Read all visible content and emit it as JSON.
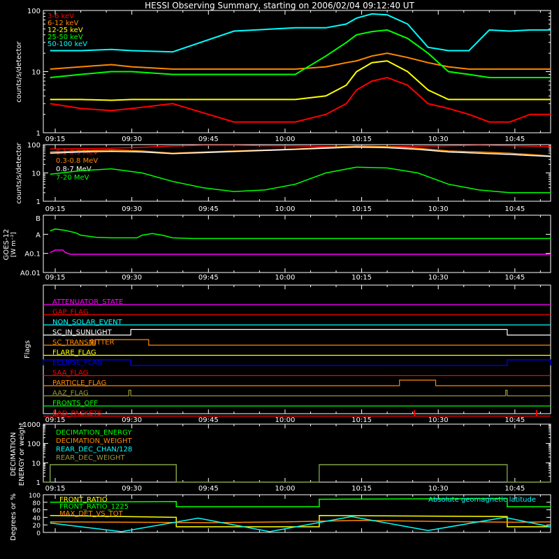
{
  "title": "HESSI Observing Summary, starting on 2006/02/04 09:12:40 UT",
  "colors": {
    "background": "#000000",
    "axis": "#ffffff",
    "red": "#ff0000",
    "orange": "#ff8800",
    "yellow": "#ffff00",
    "green": "#00ff00",
    "cyan": "#00ffff",
    "magenta": "#ff00ff",
    "blue": "#0000ff",
    "olive": "#999933"
  },
  "time_axis": {
    "ticks": [
      "09:15",
      "09:30",
      "09:45",
      "10:00",
      "10:15",
      "10:30",
      "10:45"
    ],
    "range_minutes": [
      12.67,
      112
    ]
  },
  "chart_data": [
    {
      "type": "line",
      "panel": "low-energy-rates",
      "ylabel": "counts/s/detector",
      "ylog": true,
      "ylim": [
        1,
        100
      ],
      "ytick_labels": [
        "1",
        "10",
        "100"
      ],
      "legend_position": "top-left",
      "series": [
        {
          "name": "3-6 keV",
          "color": "#ff0000",
          "x": [
            14,
            20,
            26,
            30,
            38,
            50,
            62,
            68,
            72,
            74,
            77,
            80,
            84,
            88,
            92,
            96,
            100,
            104,
            108,
            112
          ],
          "y": [
            3,
            2.5,
            2.3,
            2.5,
            3,
            1.5,
            1.5,
            2,
            3,
            5,
            7,
            8,
            6,
            3,
            2.5,
            2,
            1.5,
            1.5,
            2,
            2
          ]
        },
        {
          "name": "6-12 keV",
          "color": "#ff8800",
          "x": [
            14,
            20,
            26,
            30,
            38,
            50,
            62,
            68,
            72,
            74,
            77,
            80,
            84,
            88,
            92,
            96,
            100,
            104,
            108,
            112
          ],
          "y": [
            11,
            12,
            13,
            12,
            11,
            11,
            11,
            12,
            14,
            15,
            18,
            20,
            17,
            14,
            12,
            11,
            11,
            11,
            11,
            11
          ]
        },
        {
          "name": "12-25 keV",
          "color": "#ffff00",
          "x": [
            14,
            20,
            26,
            30,
            38,
            50,
            62,
            68,
            72,
            74,
            77,
            80,
            84,
            88,
            92,
            96,
            100,
            104,
            108,
            112
          ],
          "y": [
            3.5,
            3.5,
            3.4,
            3.5,
            3.5,
            3.5,
            3.5,
            4,
            6,
            10,
            14,
            15,
            10,
            5,
            3.5,
            3.5,
            3.5,
            3.5,
            3.5,
            3.5
          ]
        },
        {
          "name": "25-50 keV",
          "color": "#00ff00",
          "x": [
            14,
            20,
            26,
            30,
            38,
            50,
            62,
            68,
            72,
            74,
            77,
            80,
            84,
            88,
            92,
            96,
            100,
            104,
            108,
            112
          ],
          "y": [
            8,
            9,
            10,
            10,
            9,
            9,
            9,
            18,
            30,
            40,
            45,
            48,
            35,
            20,
            10,
            9,
            8,
            8,
            8,
            8
          ]
        },
        {
          "name": "50-100 keV",
          "color": "#00ffff",
          "x": [
            14,
            20,
            26,
            30,
            38,
            50,
            62,
            68,
            72,
            74,
            77,
            80,
            84,
            88,
            92,
            96,
            100,
            104,
            108,
            112
          ],
          "y": [
            22,
            22,
            23,
            22,
            21,
            46,
            52,
            52,
            60,
            75,
            88,
            85,
            60,
            25,
            22,
            22,
            48,
            46,
            48,
            48
          ]
        }
      ]
    },
    {
      "type": "line",
      "panel": "high-energy-rates",
      "ylabel": "counts/s/detector",
      "ylog": true,
      "ylim": [
        1,
        100
      ],
      "ytick_labels": [
        "1",
        "10",
        "100"
      ],
      "legend_position": "top-left",
      "series": [
        {
          "name": "0.1-0.3 MeV",
          "color": "#ff0000",
          "x": [
            14,
            20,
            26,
            32,
            38,
            44,
            50,
            56,
            62,
            68,
            74,
            80,
            86,
            92,
            98,
            104,
            112
          ],
          "y": [
            70,
            72,
            75,
            80,
            90,
            95,
            95,
            92,
            90,
            85,
            82,
            84,
            88,
            92,
            95,
            92,
            85
          ]
        },
        {
          "name": "0.3-0.8 MeV",
          "color": "#ff8800",
          "x": [
            14,
            20,
            26,
            32,
            38,
            44,
            50,
            56,
            62,
            68,
            74,
            80,
            86,
            92,
            98,
            104,
            112
          ],
          "y": [
            55,
            60,
            65,
            60,
            50,
            55,
            60,
            65,
            70,
            80,
            90,
            85,
            75,
            60,
            55,
            50,
            40
          ]
        },
        {
          "name": "0.8-7 MeV",
          "color": "#ffffff",
          "x": [
            14,
            20,
            26,
            32,
            38,
            44,
            50,
            56,
            62,
            68,
            74,
            80,
            86,
            92,
            98,
            104,
            112
          ],
          "y": [
            50,
            55,
            58,
            55,
            48,
            52,
            57,
            62,
            68,
            75,
            82,
            78,
            68,
            55,
            50,
            45,
            38
          ]
        },
        {
          "name": "7-20 MeV",
          "color": "#00ff00",
          "x": [
            14,
            20,
            26,
            32,
            38,
            44,
            50,
            56,
            62,
            68,
            74,
            80,
            86,
            92,
            98,
            104,
            112
          ],
          "y": [
            9,
            12,
            14,
            10,
            5,
            3,
            2.2,
            2.5,
            4,
            10,
            16,
            15,
            10,
            4,
            2.5,
            2,
            2
          ]
        }
      ]
    },
    {
      "type": "line",
      "panel": "goes",
      "ylabel": "GOES-12",
      "ylabel_unit": "[W m⁻²]",
      "ylog": true,
      "ytick_labels": [
        "B",
        "A",
        "A0.1",
        "A0.01"
      ],
      "series": [
        {
          "color": "#00ff00",
          "x": [
            14,
            15,
            17,
            19,
            20,
            23,
            26,
            31,
            32,
            34,
            36,
            38,
            42,
            60,
            80,
            100,
            112
          ],
          "y": [
            1.5e-08,
            1.9e-08,
            1.6e-08,
            1.2e-08,
            9e-09,
            7e-09,
            6.5e-09,
            6.5e-09,
            9e-09,
            1.1e-08,
            9e-09,
            6.5e-09,
            6e-09,
            6e-09,
            6e-09,
            6e-09,
            6e-09
          ]
        },
        {
          "color": "#ff00ff",
          "x": [
            14,
            15,
            16.5,
            17,
            18,
            40,
            60,
            80,
            100,
            112
          ],
          "y": [
            1.1e-09,
            1.5e-09,
            1.5e-09,
            1.1e-09,
            9e-10,
            9e-10,
            9e-10,
            9e-10,
            9e-10,
            9e-10
          ]
        }
      ]
    },
    {
      "type": "line",
      "panel": "flags",
      "ylabel": "Flags",
      "flags": [
        {
          "name": "ATTENUATOR_STATE",
          "color": "#ff00ff",
          "on": []
        },
        {
          "name": "GAP_FLAG",
          "color": "#ff0000",
          "on": []
        },
        {
          "name": "NON_SOLAR_EVENT",
          "color": "#00ffff",
          "on": []
        },
        {
          "name": "SC_IN_SUNLIGHT",
          "color": "#ffffff",
          "on": [
            [
              29.8,
              103.5
            ]
          ]
        },
        {
          "name": "SC_TRANSMITTER",
          "color": "#ff8800",
          "on": [
            [
              22,
              22.3
            ],
            [
              22.8,
              33.3
            ]
          ]
        },
        {
          "name": "FLARE_FLAG",
          "color": "#ffff00",
          "on": []
        },
        {
          "name": "ECLIPSE_FLAG",
          "color": "#0000ff",
          "on": [
            [
              12.67,
              29.8
            ],
            [
              103.5,
              112
            ]
          ]
        },
        {
          "name": "SAA_FLAG",
          "color": "#ff0000",
          "on": []
        },
        {
          "name": "PARTICLE_FLAG",
          "color": "#ff8800",
          "on": [
            [
              82.4,
              89.5
            ]
          ]
        },
        {
          "name": "AAZ_FLAG",
          "color": "#999933",
          "on": [
            [
              29.4,
              29.8
            ],
            [
              103.2,
              103.5
            ]
          ]
        },
        {
          "name": "FRONTS_OFF",
          "color": "#00ff00",
          "on": []
        },
        {
          "name": "BAD_PACKETS",
          "color": "#ff0000",
          "on": [
            [
              85.3,
              85.4
            ],
            [
              109.2,
              109.3
            ]
          ]
        }
      ]
    },
    {
      "type": "line",
      "panel": "decimation",
      "ylabel": "DECIMATION ENERGY or weight",
      "ylog": true,
      "ylim": [
        1,
        1000
      ],
      "ytick_labels": [
        "1",
        "10",
        "100",
        "1000"
      ],
      "series": [
        {
          "name": "DECIMATION_ENERGY",
          "color": "#00ff00",
          "x": [
            12.67,
            112
          ],
          "y": [
            0,
            0
          ]
        },
        {
          "name": "DECIMATION_WEIGHT",
          "color": "#ff8800",
          "x": [
            12.67,
            112
          ],
          "y": [
            0,
            0
          ]
        },
        {
          "name": "REAR_DEC_CHAN/128",
          "color": "#00ffff",
          "x": [
            12.67,
            14,
            14,
            38.7,
            38.7,
            66.7,
            66.7,
            103.5,
            103.5,
            112
          ],
          "y": [
            1,
            1,
            8,
            8,
            1,
            1,
            8,
            8,
            1,
            1
          ]
        },
        {
          "name": "REAR_DEC_WEIGHT",
          "color": "#999933",
          "x": [
            12.67,
            14,
            14,
            38.7,
            38.7,
            66.7,
            66.7,
            103.5,
            103.5,
            112
          ],
          "y": [
            1,
            1,
            8,
            8,
            1,
            1,
            8,
            8,
            1,
            1
          ]
        }
      ]
    },
    {
      "type": "line",
      "panel": "ratios",
      "ylabel": "Degrees or %",
      "ylim": [
        0,
        100
      ],
      "ytick_labels": [
        "0",
        "20",
        "40",
        "60",
        "80",
        "100"
      ],
      "series": [
        {
          "name": "FRONT_RATIO",
          "color": "#ffff00",
          "x": [
            14,
            38.7,
            38.7,
            66.7,
            66.7,
            103.5,
            103.5,
            112
          ],
          "y": [
            45,
            40,
            15,
            15,
            45,
            42,
            15,
            15
          ]
        },
        {
          "name": "FRONT_RATIO_1225",
          "color": "#00ff00",
          "x": [
            14,
            38.7,
            38.7,
            66.7,
            66.7,
            103.5,
            103.5,
            112
          ],
          "y": [
            80,
            82,
            68,
            68,
            88,
            90,
            68,
            68
          ]
        },
        {
          "name": "MAX_DET_VS_TOT",
          "color": "#ff8800",
          "x": [
            14,
            30,
            45,
            60,
            75,
            90,
            105,
            112
          ],
          "y": [
            28,
            27,
            26,
            28,
            32,
            29,
            27,
            28
          ]
        },
        {
          "name": "Absolute geomagnetic latitude",
          "color": "#00ffff",
          "x": [
            14,
            28,
            43,
            57,
            73,
            88,
            103,
            112
          ],
          "y": [
            25,
            2,
            38,
            2,
            42,
            5,
            40,
            15
          ]
        }
      ]
    }
  ]
}
